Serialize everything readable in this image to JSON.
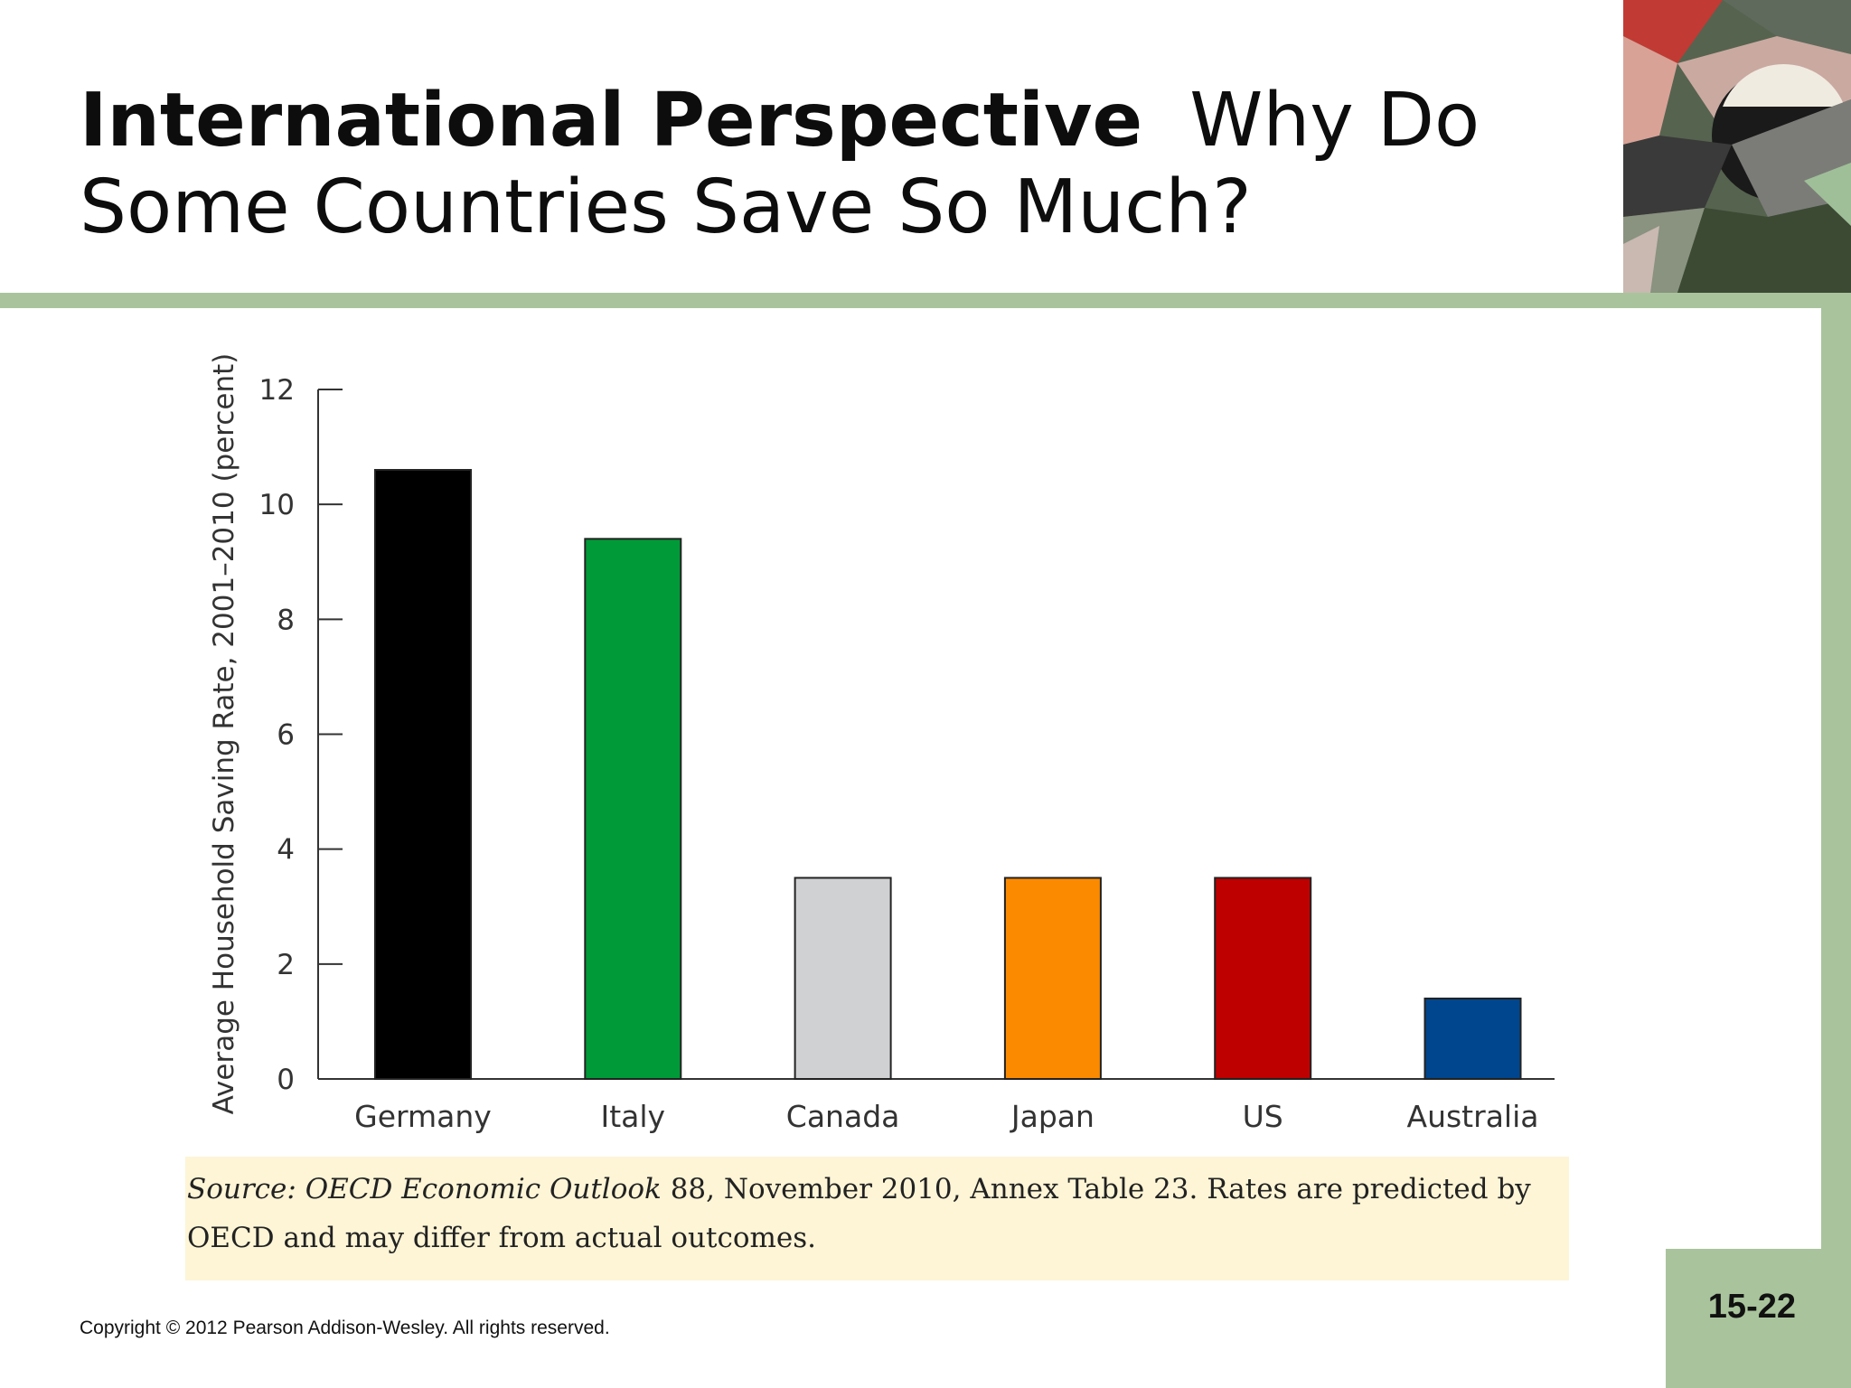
{
  "slide": {
    "title_bold": "International Perspective",
    "title_rest": "Why Do Some Countries Save So Much?",
    "page_number": "15-22",
    "copyright": "Copyright © 2012 Pearson Addison-Wesley. All rights reserved.",
    "source_italic": "Source: OECD Economic Outlook",
    "source_rest": " 88, November 2010, Annex Table 23. Rates are predicted by OECD and may differ from actual outcomes."
  },
  "chart_data": {
    "type": "bar",
    "title": "",
    "xlabel": "",
    "ylabel": "Average Household Saving Rate, 2001–2010 (percent)",
    "categories": [
      "Germany",
      "Italy",
      "Canada",
      "Japan",
      "US",
      "Australia"
    ],
    "values": [
      10.6,
      9.4,
      3.5,
      3.5,
      3.5,
      1.4
    ],
    "colors": [
      "#000000",
      "#009a38",
      "#d0d1d3",
      "#fb8a00",
      "#be0000",
      "#00468e"
    ],
    "ylim": [
      0,
      12
    ],
    "yticks": [
      0,
      2,
      4,
      6,
      8,
      10,
      12
    ],
    "grid": false
  }
}
